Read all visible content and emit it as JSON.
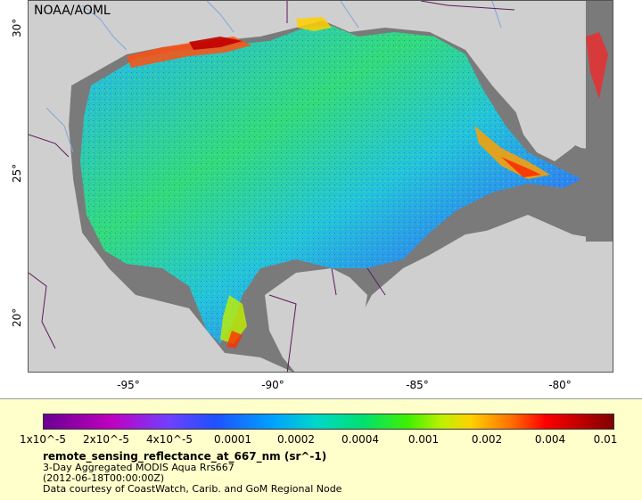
{
  "map": {
    "credit": "NOAA/AOML",
    "latitude_labels": [
      "30°",
      "25°",
      "20°"
    ],
    "longitude_labels": [
      "-95°",
      "-90°",
      "-85°",
      "-80°"
    ],
    "colors": {
      "land": "#cfcfcf",
      "no_data": "#7a7a7a",
      "coastline": "#000000",
      "borders": "#5a1a5a",
      "rivers": "#7da7d9"
    }
  },
  "legend": {
    "tick_labels": [
      "1x10^-5",
      "2x10^-5",
      "4x10^-5",
      "0.0001",
      "0.0002",
      "0.0004",
      "0.001",
      "0.002",
      "0.004",
      "0.01"
    ],
    "variable_title": "remote_sensing_reflectance_at_667_nm (sr^-1)",
    "product_line": "3-Day Aggregated MODIS Aqua Rrs667",
    "date_line": "(2012-06-18T00:00:00Z)",
    "source_line": "Data courtesy of CoastWatch, Carib. and GoM Regional Node"
  }
}
